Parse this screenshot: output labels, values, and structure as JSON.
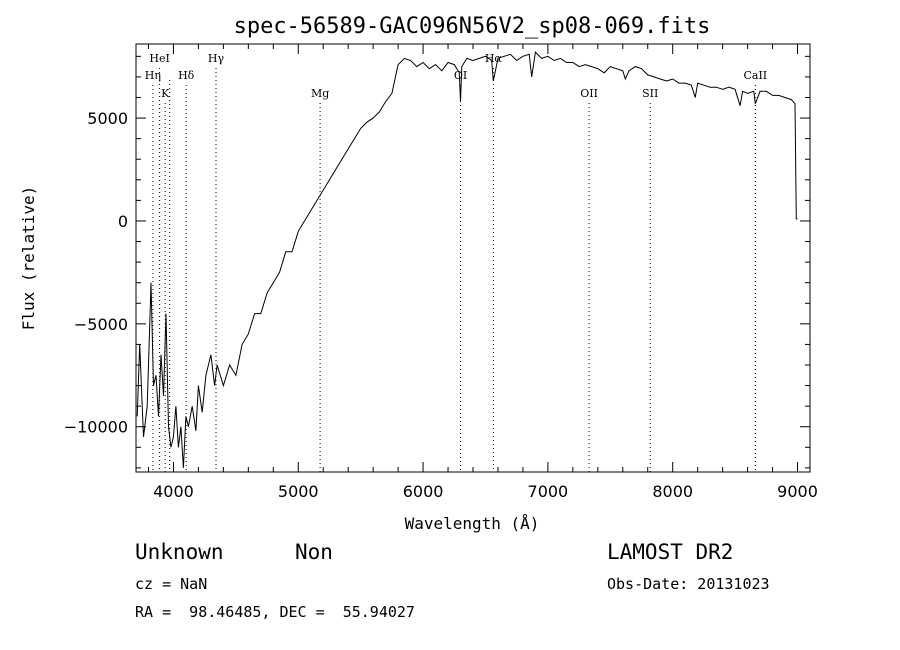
{
  "chart_data": {
    "type": "line",
    "title": "spec-56589-GAC096N56V2_sp08-069.fits",
    "xlabel": "Wavelength (Å)",
    "ylabel": "Flux (relative)",
    "xlim": [
      3700,
      9100
    ],
    "ylim": [
      -12200,
      8600
    ],
    "xticks": [
      4000,
      5000,
      6000,
      7000,
      8000,
      9000
    ],
    "yticks": [
      -10000,
      -5000,
      0,
      5000
    ],
    "tick_labels": {
      "x": [
        "4000",
        "5000",
        "6000",
        "7000",
        "8000",
        "9000"
      ],
      "y": [
        "−10000",
        "−5000",
        "0",
        "5000"
      ]
    },
    "series": [
      {
        "x": [
          3710,
          3730,
          3760,
          3790,
          3800,
          3820,
          3840,
          3860,
          3880,
          3900,
          3920,
          3940,
          3960,
          3980,
          4000,
          4020,
          4040,
          4060,
          4080,
          4100,
          4120,
          4150,
          4180,
          4200,
          4230,
          4260,
          4300,
          4330,
          4350,
          4400,
          4450,
          4500,
          4550,
          4600,
          4650,
          4700,
          4750,
          4800,
          4850,
          4900,
          4950,
          5000,
          5050,
          5100,
          5150,
          5200,
          5250,
          5300,
          5350,
          5400,
          5450,
          5500,
          5550,
          5600,
          5650,
          5700,
          5750,
          5800,
          5850,
          5900,
          5950,
          6000,
          6050,
          6100,
          6150,
          6200,
          6250,
          6290,
          6300,
          6310,
          6350,
          6400,
          6450,
          6500,
          6550,
          6563,
          6600,
          6650,
          6700,
          6750,
          6800,
          6850,
          6870,
          6900,
          6950,
          7000,
          7050,
          7100,
          7150,
          7200,
          7250,
          7300,
          7350,
          7400,
          7450,
          7500,
          7550,
          7600,
          7620,
          7650,
          7700,
          7750,
          7800,
          7850,
          7900,
          7950,
          8000,
          8050,
          8100,
          8150,
          8180,
          8200,
          8250,
          8300,
          8350,
          8400,
          8450,
          8500,
          8540,
          8560,
          8600,
          8650,
          8662,
          8700,
          8750,
          8800,
          8850,
          8900,
          8950,
          8980,
          8990,
          9000
        ],
        "y": [
          -9500,
          -6000,
          -10500,
          -9000,
          -7000,
          -3000,
          -8000,
          -7500,
          -9500,
          -6500,
          -8500,
          -4500,
          -10000,
          -11000,
          -10500,
          -9000,
          -11000,
          -10000,
          -12000,
          -9500,
          -10000,
          -9000,
          -10200,
          -8000,
          -9300,
          -7500,
          -6500,
          -8000,
          -7000,
          -8000,
          -7000,
          -7500,
          -6000,
          -5500,
          -4500,
          -4500,
          -3500,
          -3000,
          -2500,
          -1500,
          -1500,
          -500,
          0,
          500,
          1000,
          1500,
          2000,
          2500,
          3000,
          3500,
          4000,
          4500,
          4800,
          5000,
          5300,
          5800,
          6200,
          7600,
          7900,
          7800,
          7500,
          7700,
          7400,
          7600,
          7300,
          7700,
          7600,
          7200,
          5800,
          7500,
          7900,
          7800,
          7900,
          8000,
          7800,
          6800,
          7900,
          8000,
          8100,
          7800,
          8000,
          8100,
          7000,
          8200,
          7900,
          8000,
          7800,
          7900,
          7700,
          7700,
          7500,
          7600,
          7500,
          7400,
          7200,
          7500,
          7400,
          7300,
          6900,
          7300,
          7500,
          7400,
          7100,
          7000,
          6900,
          6800,
          6900,
          6700,
          6700,
          6600,
          6000,
          6700,
          6600,
          6500,
          6500,
          6400,
          6500,
          6400,
          5600,
          6300,
          6200,
          6300,
          5700,
          6300,
          6300,
          6100,
          6100,
          6000,
          5900,
          5700,
          100,
          100
        ]
      }
    ],
    "lines": [
      {
        "label": "HeI",
        "x": 3889,
        "tier": 1
      },
      {
        "label": "Hη",
        "x": 3835,
        "tier": 2
      },
      {
        "label": "Hδ",
        "x": 4102,
        "tier": 2
      },
      {
        "label": "Hγ",
        "x": 4341,
        "tier": 1
      },
      {
        "label": "K",
        "x": 3934,
        "tier": 3
      },
      {
        "label": "Mg",
        "x": 5175,
        "tier": 3
      },
      {
        "label": "OI",
        "x": 6300,
        "tier": 2
      },
      {
        "label": "Hα",
        "x": 6563,
        "tier": 1
      },
      {
        "label": "OII",
        "x": 7330,
        "tier": 3
      },
      {
        "label": "SII",
        "x": 7820,
        "tier": 3
      },
      {
        "label": "CaII",
        "x": 8662,
        "tier": 2
      }
    ],
    "extra_dotted_x": [
      3970,
      4102,
      4341
    ]
  },
  "info": {
    "object_class": "Unknown",
    "subclass": "Non",
    "cz": "cz = NaN",
    "coords": "RA =  98.46485, DEC =  55.94027",
    "survey": "LAMOST DR2",
    "obs_date": "Obs-Date: 20131023"
  }
}
